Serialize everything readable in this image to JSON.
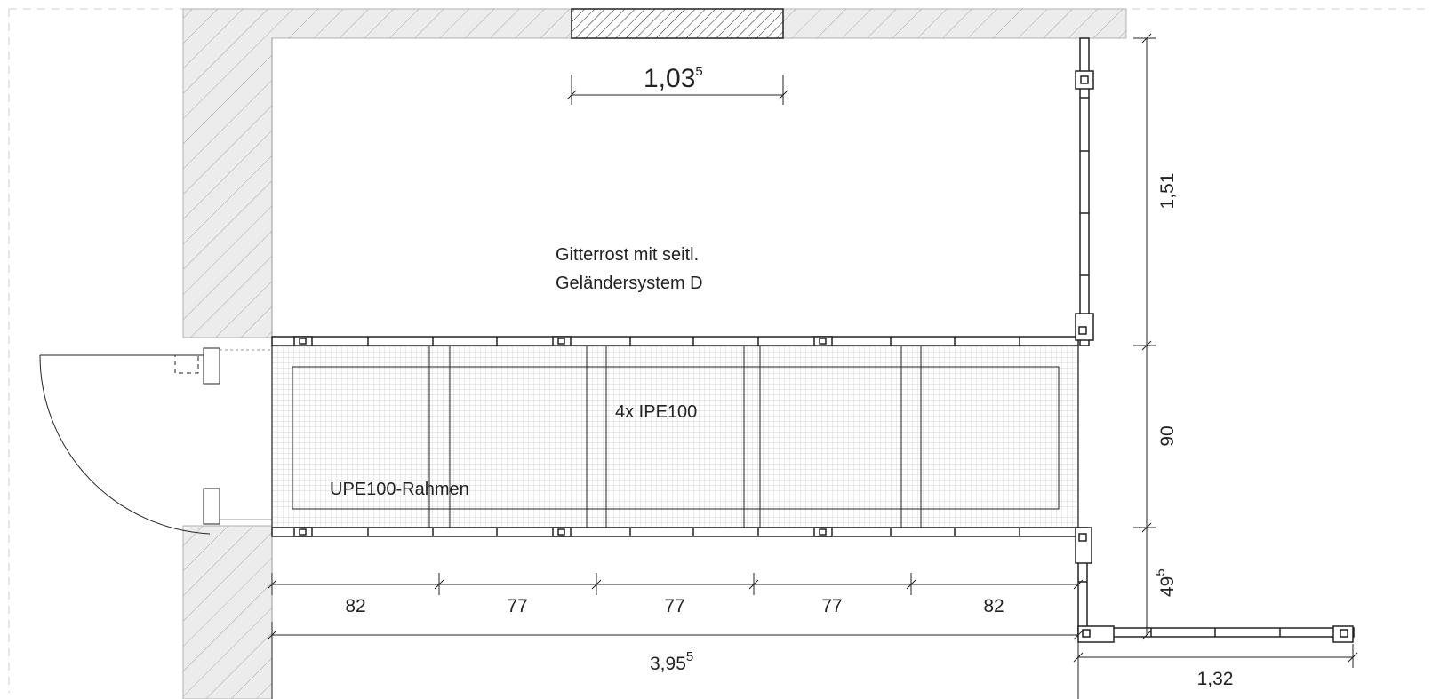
{
  "labels": {
    "grating_line1": "Gitterrost mit seitl.",
    "grating_line2": "Geländersystem D",
    "beams": "4x IPE100",
    "frame": "UPE100-Rahmen"
  },
  "dimensions": {
    "opening_main": "1,03",
    "opening_sup": "5",
    "segments": [
      "82",
      "77",
      "77",
      "77",
      "82"
    ],
    "total_main": "3,95",
    "total_sup": "5",
    "right_upper": "1,51",
    "right_middle": "90",
    "right_lower_main": "49",
    "right_lower_sup": "5",
    "bottom_right": "1,32"
  },
  "colors": {
    "line": "#222222",
    "wall_fill": "#ebebeb",
    "grid": "#c8c8c8"
  }
}
